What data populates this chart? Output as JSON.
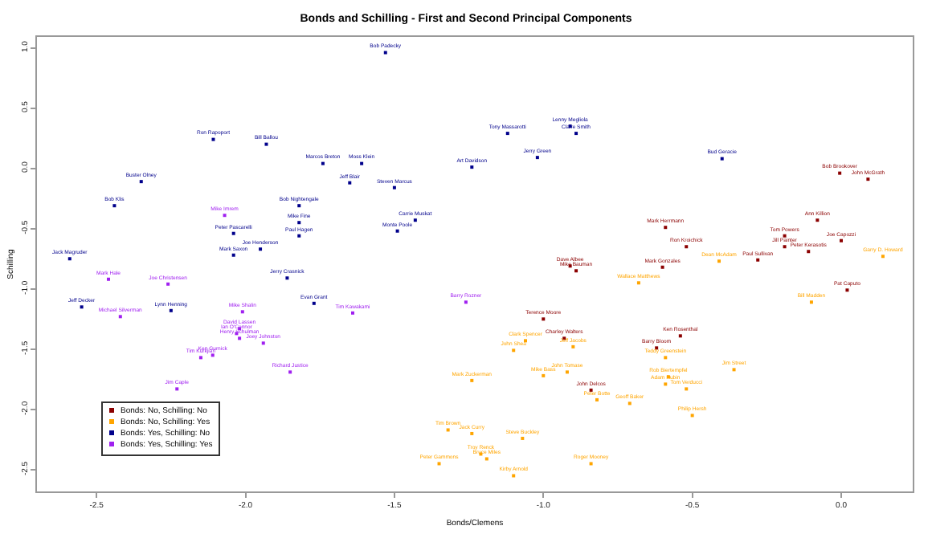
{
  "chart_data": {
    "type": "scatter",
    "title": "Bonds and Schilling - First and Second Principal Components",
    "xlabel": "Bonds/Clemens",
    "ylabel": "Schilling",
    "marker": "square",
    "grid": false,
    "legend": "bottom left",
    "xlim": [
      -2.7,
      0.24
    ],
    "ylim": [
      -2.68,
      1.09
    ],
    "xticks": [
      {
        "value": -2.5,
        "label": "-2.5"
      },
      {
        "value": -2,
        "label": "-2.0"
      },
      {
        "value": -1.5,
        "label": "-1.5"
      },
      {
        "value": -1,
        "label": "-1.0"
      },
      {
        "value": -0.5,
        "label": "-0.5"
      },
      {
        "value": 0,
        "label": "0.0"
      }
    ],
    "yticks": [
      {
        "value": 1,
        "label": "1.0"
      },
      {
        "value": 0.5,
        "label": "0.5"
      },
      {
        "value": 0,
        "label": "0.0"
      },
      {
        "value": -0.5,
        "label": "-0.5"
      },
      {
        "value": -1,
        "label": "-1.0"
      },
      {
        "value": -1.5,
        "label": "-1.5"
      },
      {
        "value": -2,
        "label": "-2.0"
      },
      {
        "value": -2.5,
        "label": "-2.5"
      }
    ],
    "series": [
      {
        "name": "Bonds: No, Schilling: No",
        "color": "#8b0000",
        "x": [
          -0.91,
          -0.89,
          -0.005,
          0.09,
          -0.08,
          -0.59,
          -0.19,
          0.0,
          -0.52,
          -0.19,
          -0.11,
          -0.28,
          -0.6,
          -1.0,
          -0.93,
          -0.84,
          0.02,
          -0.54,
          -0.62
        ],
        "values": [
          -0.81,
          -0.85,
          -0.04,
          -0.09,
          -0.43,
          -0.49,
          -0.56,
          -0.6,
          -0.65,
          -0.65,
          -0.69,
          -0.76,
          -0.82,
          -1.25,
          -1.41,
          -1.84,
          -1.01,
          -1.39,
          -1.49
        ],
        "value_labels": [
          "Dave Albee",
          "Mike Bauman",
          "Bob Brookover",
          "John McGrath",
          "Ann Killion",
          "Mark Herrmann",
          "Tom Powers",
          "Joe Capozzi",
          "Ron Kroichick",
          "Jill Painter",
          "Peter Kerasotis",
          "Paul Sullivan",
          "Mark Gonzales",
          "Terence Moore",
          "Charley Walters",
          "John Delcos",
          "Pat Caputo",
          "Ken Rosenthal",
          "Barry Bloom"
        ]
      },
      {
        "name": "Bonds: No, Schilling: Yes",
        "color": "#ffa500",
        "x": [
          -0.41,
          0.14,
          -1.06,
          -0.9,
          -1.1,
          -1.0,
          -0.92,
          -1.24,
          -0.82,
          -1.32,
          -1.24,
          -1.07,
          -1.21,
          -1.19,
          -1.35,
          -0.84,
          -1.1,
          -0.68,
          -0.1,
          -0.59,
          -0.36,
          -0.58,
          -0.59,
          -0.52,
          -0.71,
          -0.5
        ],
        "values": [
          -0.77,
          -0.73,
          -1.43,
          -1.48,
          -1.51,
          -1.72,
          -1.69,
          -1.76,
          -1.92,
          -2.17,
          -2.2,
          -2.24,
          -2.37,
          -2.41,
          -2.45,
          -2.45,
          -2.55,
          -0.95,
          -1.11,
          -1.57,
          -1.67,
          -1.73,
          -1.79,
          -1.83,
          -1.95,
          -2.05
        ],
        "value_labels": [
          "Dean McAdam",
          "Garry D. Howard",
          "Clark Spencer",
          "Jeff Jacobs",
          "John Shea",
          "Mike Bass",
          "John Tomase",
          "Mark Zuckerman",
          "Peter Botte",
          "Tim Brown",
          "Jack Curry",
          "Steve Buckley",
          "Troy Renck",
          "Bruce Miles",
          "Peter Gammons",
          "Roger Mooney",
          "Kirby Arnold",
          "Wallace Matthews",
          "Bill Madden",
          "Teddy Greenstein",
          "Jim Street",
          "Rob Biertempfel",
          "Adam Rubin",
          "Tom Verducci",
          "Geoff Baker",
          "Philip Hersh"
        ]
      },
      {
        "name": "Bonds: Yes, Schilling: No",
        "color": "#00008b",
        "x": [
          -2.108,
          -1.93,
          -2.35,
          -2.44,
          -1.82,
          -2.04,
          -1.82,
          -1.95,
          -2.04,
          -2.59,
          -1.53,
          -1.12,
          -0.91,
          -0.89,
          -1.02,
          -1.24,
          -1.74,
          -1.61,
          -1.65,
          -1.5,
          -1.43,
          -1.49,
          -0.4,
          -1.86,
          -2.55,
          -2.25,
          -1.77,
          -1.82
        ],
        "values": [
          0.24,
          0.2,
          -0.11,
          -0.31,
          -0.31,
          -0.54,
          -0.56,
          -0.67,
          -0.72,
          -0.75,
          0.96,
          0.29,
          0.35,
          0.29,
          0.09,
          0.01,
          0.04,
          0.04,
          -0.12,
          -0.16,
          -0.43,
          -0.52,
          0.08,
          -0.91,
          -1.15,
          -1.18,
          -1.12,
          -0.45
        ],
        "value_labels": [
          "Ron Rapoport",
          "Bill Ballou",
          "Buster Olney",
          "Bob Klis",
          "Bob Nightengale",
          "Peter Pascarelli",
          "Paul Hagen",
          "Joe Henderson",
          "Mark Saxon",
          "Jack Magruder",
          "Bob Padecky",
          "Tony Massarotti",
          "Lenny Megliola",
          "Claire Smith",
          "Jerry Green",
          "Art Davidson",
          "Marcos Breton",
          "Moss Klein",
          "Jeff Blair",
          "Steven Marcus",
          "Carrie Muskat",
          "Monte Poole",
          "Bud Geracie",
          "Jerry Crasnick",
          "Jeff Decker",
          "Lynn Henning",
          "Evan Grant",
          "Mike Fine"
        ]
      },
      {
        "name": "Bonds: Yes, Schilling: Yes",
        "color": "#a020f0",
        "x": [
          -2.07,
          -2.46,
          -2.26,
          -2.01,
          -2.42,
          -2.02,
          -2.03,
          -2.02,
          -1.94,
          -2.11,
          -2.15,
          -1.85,
          -2.23,
          -1.64,
          -1.26
        ],
        "values": [
          -0.39,
          -0.92,
          -0.96,
          -1.19,
          -1.23,
          -1.33,
          -1.37,
          -1.41,
          -1.45,
          -1.55,
          -1.57,
          -1.69,
          -1.83,
          -1.2,
          -1.11
        ],
        "value_labels": [
          "Mike Imrem",
          "Mark Hale",
          "Joe Christensen",
          "Mike Shalin",
          "Michael Silverman",
          "David Lassen",
          "Ian O'Connor",
          "Henry Schulman",
          "Joey Johnston",
          "Ken Gurnick",
          "Tim Kurkjian",
          "Richard Justice",
          "Jim Caple",
          "Tim Kawakami",
          "Barry Rozner"
        ]
      }
    ]
  }
}
